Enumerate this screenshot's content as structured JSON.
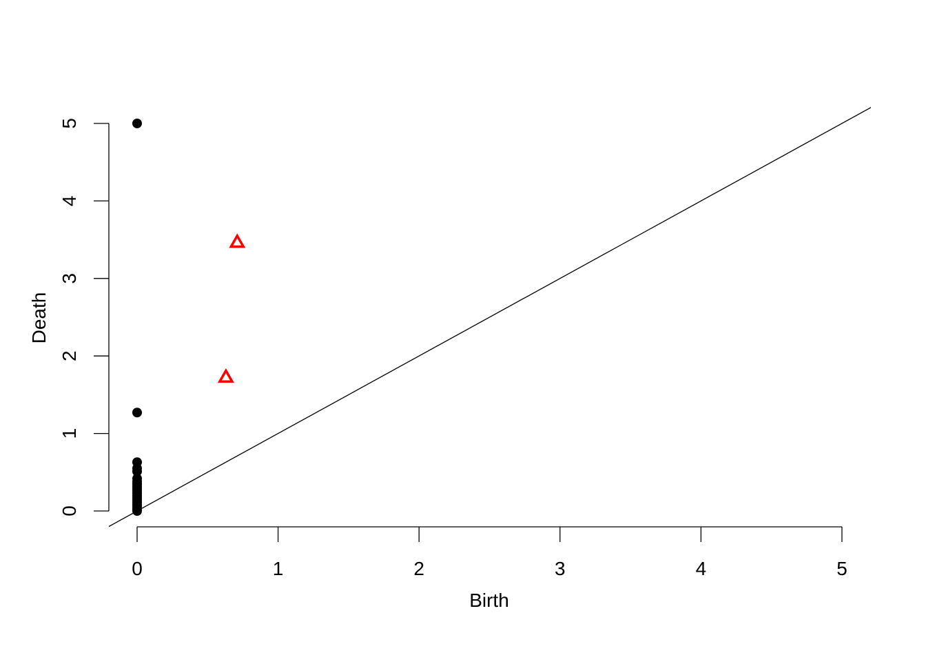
{
  "chart_data": {
    "type": "scatter",
    "title": "",
    "xlabel": "Birth",
    "ylabel": "Death",
    "xlim": [
      0,
      5
    ],
    "ylim": [
      0,
      5
    ],
    "xticks": [
      "0",
      "1",
      "2",
      "3",
      "4",
      "5"
    ],
    "yticks": [
      "0",
      "1",
      "2",
      "3",
      "4",
      "5"
    ],
    "grid": false,
    "legend": "none",
    "reference_line": {
      "type": "diagonal",
      "equation": "y = x",
      "color": "#000000"
    },
    "series": [
      {
        "marker": "filled-circle",
        "color": "#000000",
        "points": [
          [
            0,
            5.0
          ],
          [
            0,
            1.27
          ],
          [
            0,
            0.63
          ],
          [
            0,
            0.55
          ],
          [
            0,
            0.51
          ],
          [
            0,
            0.42
          ],
          [
            0,
            0.38
          ],
          [
            0,
            0.35
          ],
          [
            0,
            0.32
          ],
          [
            0,
            0.29
          ],
          [
            0,
            0.26
          ],
          [
            0,
            0.23
          ],
          [
            0,
            0.2
          ],
          [
            0,
            0.17
          ],
          [
            0,
            0.14
          ],
          [
            0,
            0.11
          ],
          [
            0,
            0.08
          ],
          [
            0,
            0.05
          ],
          [
            0,
            0.02
          ],
          [
            0,
            0.0
          ]
        ]
      },
      {
        "marker": "open-triangle",
        "color": "#ff0000",
        "points": [
          [
            0.71,
            3.47
          ],
          [
            0.63,
            1.73
          ]
        ]
      }
    ]
  }
}
